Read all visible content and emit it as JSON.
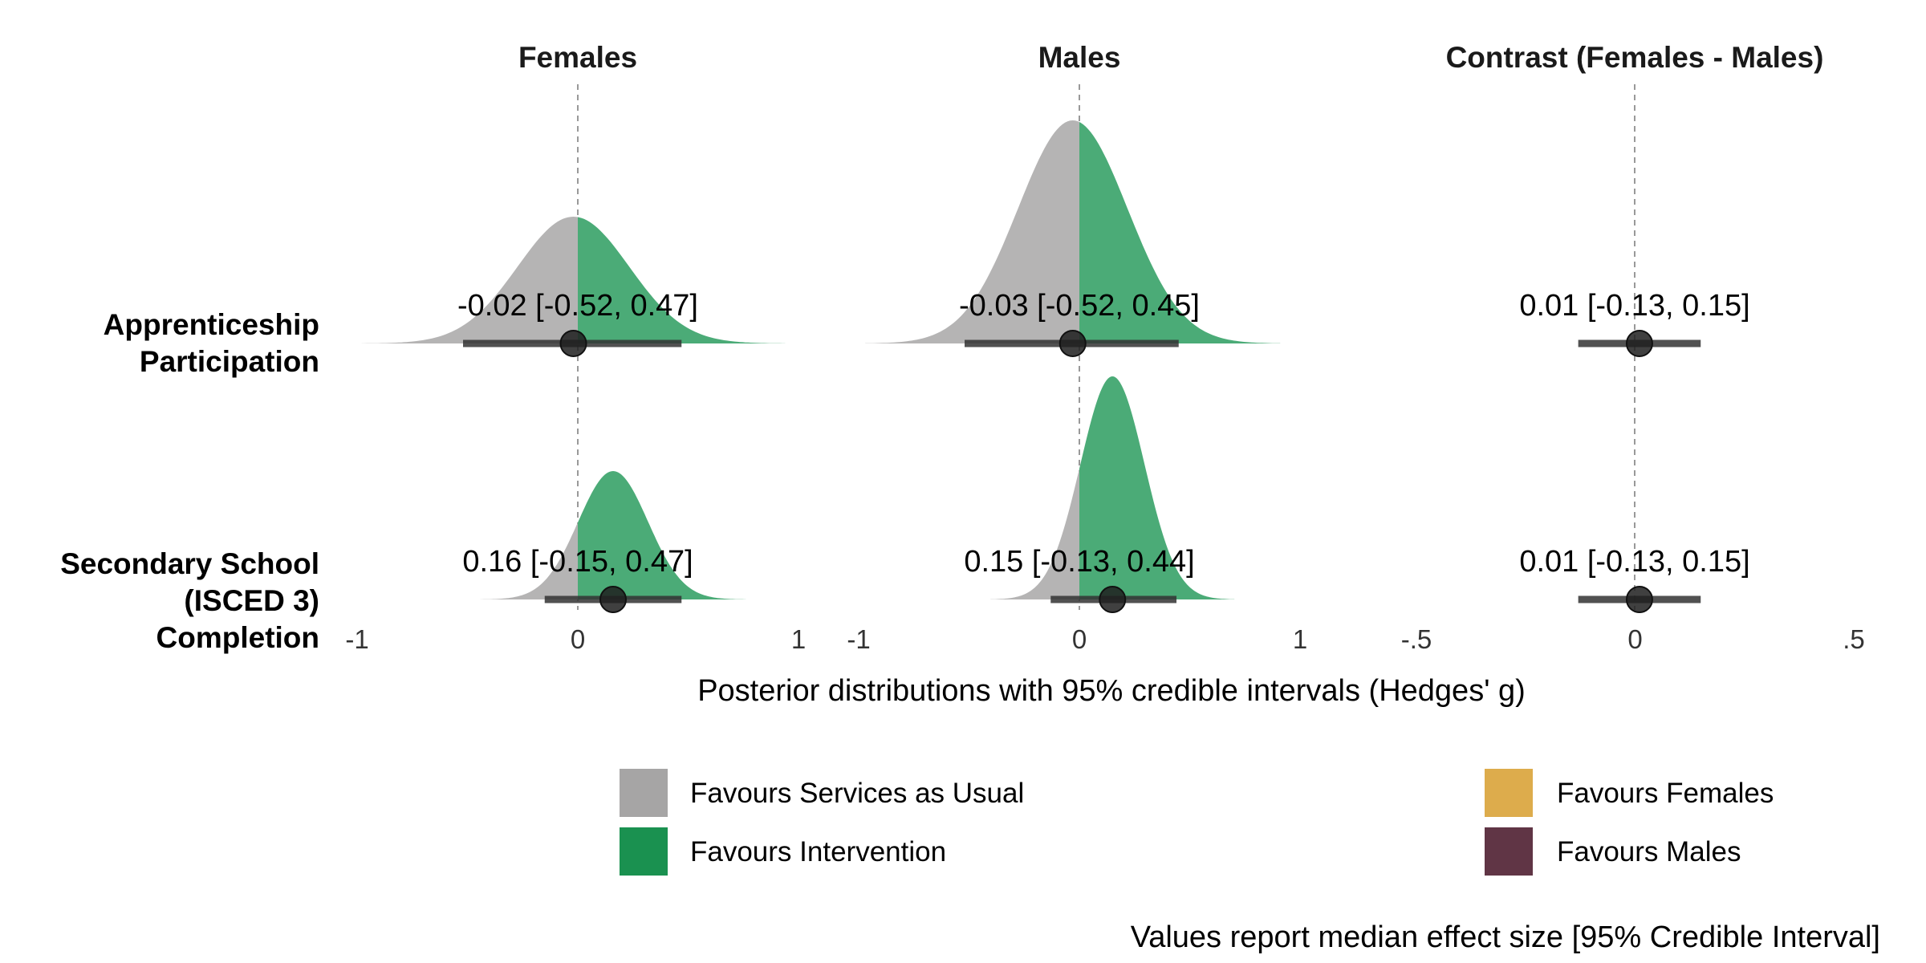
{
  "chart_data": {
    "type": "density-interval",
    "panels": [
      {
        "title": "Females",
        "xlim": [
          -1,
          1
        ],
        "tick_values": [
          -1,
          0,
          1
        ],
        "tick_labels": [
          "-1",
          "0",
          "1"
        ]
      },
      {
        "title": "Males",
        "xlim": [
          -1,
          1
        ],
        "tick_values": [
          -1,
          0,
          1
        ],
        "tick_labels": [
          "-1",
          "0",
          "1"
        ]
      },
      {
        "title": "Contrast (Females - Males)",
        "xlim": [
          -0.5,
          0.5
        ],
        "tick_values": [
          -0.5,
          0,
          0.5
        ],
        "tick_labels": [
          "-.5",
          "0",
          ".5"
        ]
      }
    ],
    "rows": [
      {
        "label_lines": [
          "Apprenticeship",
          "Participation"
        ]
      },
      {
        "label_lines": [
          "Secondary School",
          "(ISCED 3)",
          "Completion"
        ]
      }
    ],
    "cells": [
      [
        {
          "median": -0.02,
          "lo": -0.52,
          "hi": 0.47,
          "label": "-0.02 [-0.52, 0.47]"
        },
        {
          "median": -0.03,
          "lo": -0.52,
          "hi": 0.45,
          "label": "-0.03 [-0.52, 0.45]"
        },
        {
          "median": 0.01,
          "lo": -0.13,
          "hi": 0.15,
          "label": "0.01 [-0.13, 0.15]"
        }
      ],
      [
        {
          "median": 0.16,
          "lo": -0.15,
          "hi": 0.47,
          "label": "0.16 [-0.15, 0.47]"
        },
        {
          "median": 0.15,
          "lo": -0.13,
          "hi": 0.44,
          "label": "0.15 [-0.13, 0.44]"
        },
        {
          "median": 0.01,
          "lo": -0.13,
          "hi": 0.15,
          "label": "0.01 [-0.13, 0.15]"
        }
      ]
    ],
    "xlabel": "Posterior distributions with 95% credible intervals (Hedges' g)",
    "legend": [
      {
        "label": "Favours Services as Usual",
        "color": "#a6a5a5"
      },
      {
        "label": "Favours Intervention",
        "color": "#1a9150"
      },
      {
        "label": "Favours Females",
        "color": "#ddac4c"
      },
      {
        "label": "Favours Males",
        "color": "#603545"
      }
    ],
    "caption": "Values report median effect size [95% Credible Interval]",
    "colors": {
      "left_main": "#b5b4b4",
      "right_main": "#4bab77",
      "left_contrast": "#876770",
      "right_contrast": "#e2bd6e",
      "interval": "#333333",
      "reference_line": "#999999"
    }
  }
}
